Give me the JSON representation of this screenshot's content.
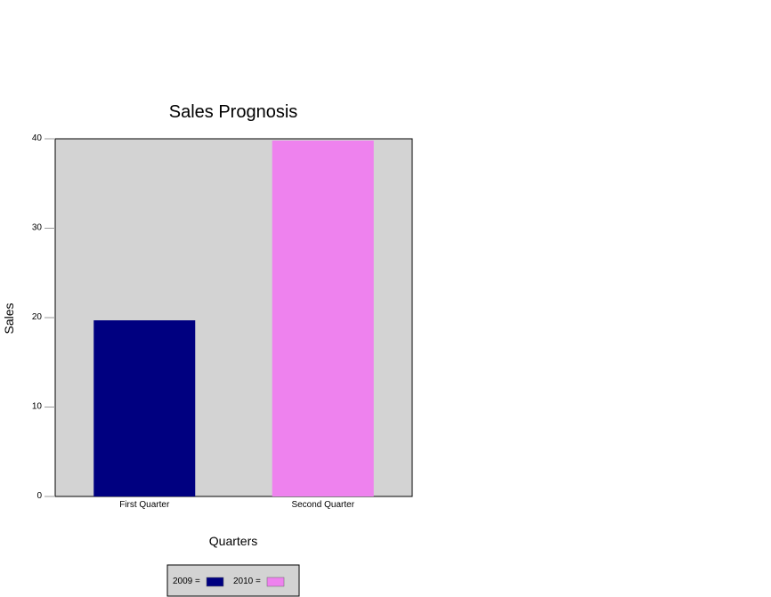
{
  "chart_data": {
    "type": "bar",
    "title": "Sales Prognosis",
    "xlabel": "Quarters",
    "ylabel": "Sales",
    "categories": [
      "First Quarter",
      "Second Quarter"
    ],
    "values": [
      19.7,
      39.8
    ],
    "bar_colors": [
      "#000080",
      "#ee82ee"
    ],
    "ylim": [
      0,
      40
    ],
    "yticks": [
      "0",
      "10",
      "20",
      "30",
      "40"
    ],
    "grid": false,
    "plot_background": "#d3d3d3",
    "legend": {
      "placement": "bottom-center",
      "entries": [
        {
          "label": "2009 =",
          "color": "#000080"
        },
        {
          "label": "2010 =",
          "color": "#ee82ee"
        }
      ]
    }
  }
}
